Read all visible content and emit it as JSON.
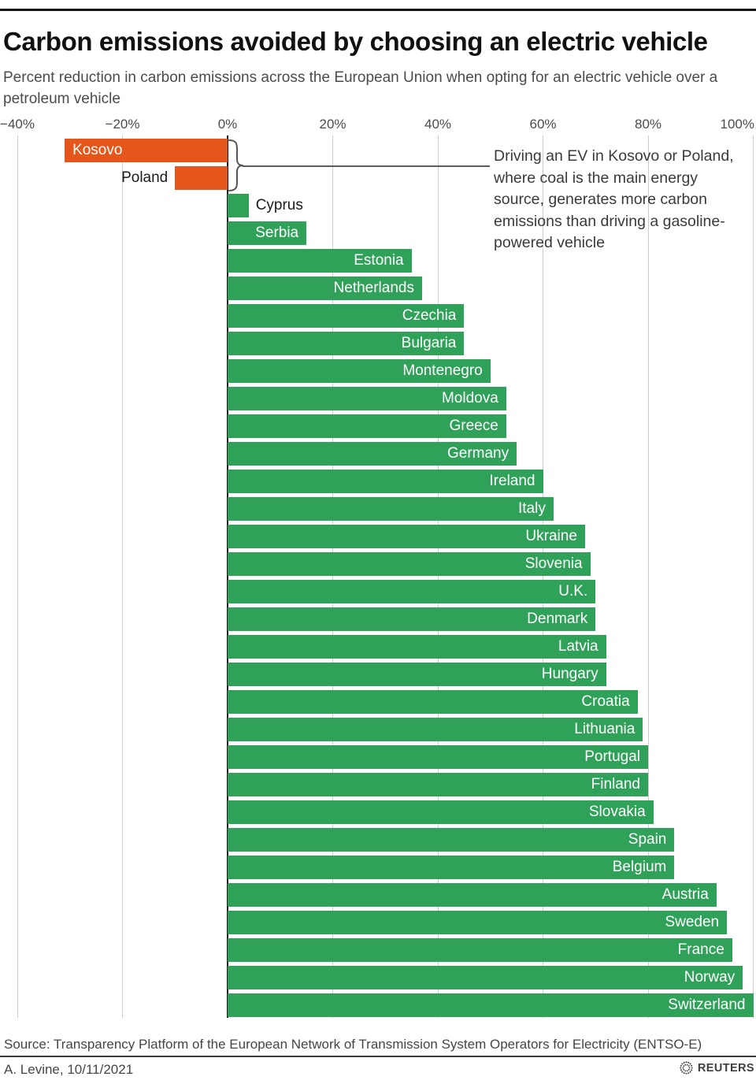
{
  "header": {
    "title": "Carbon emissions avoided by choosing an electric vehicle",
    "subtitle": "Percent reduction in carbon emissions across the European Union when opting for an electric vehicle over a petroleum vehicle"
  },
  "chart_data": {
    "type": "bar",
    "orientation": "horizontal",
    "unit": "percent",
    "xlim": [
      -40,
      100
    ],
    "tick_values": [
      -40,
      -20,
      0,
      20,
      40,
      60,
      80,
      100
    ],
    "tick_labels": [
      "−40%",
      "−20%",
      "0%",
      "20%",
      "40%",
      "60%",
      "80%",
      "100%"
    ],
    "grid": "vertical, light gray, dark zero line",
    "categories": [
      "Kosovo",
      "Poland",
      "Cyprus",
      "Serbia",
      "Estonia",
      "Netherlands",
      "Czechia",
      "Bulgaria",
      "Montenegro",
      "Moldova",
      "Greece",
      "Germany",
      "Ireland",
      "Italy",
      "Ukraine",
      "Slovenia",
      "U.K.",
      "Denmark",
      "Latvia",
      "Hungary",
      "Croatia",
      "Lithuania",
      "Portugal",
      "Finland",
      "Slovakia",
      "Spain",
      "Belgium",
      "Austria",
      "Sweden",
      "France",
      "Norway",
      "Switzerland"
    ],
    "values": [
      -31,
      -10,
      4,
      15,
      35,
      37,
      45,
      45,
      50,
      53,
      53,
      55,
      60,
      62,
      68,
      69,
      70,
      70,
      72,
      72,
      78,
      79,
      80,
      80,
      81,
      85,
      85,
      93,
      95,
      96,
      98,
      100
    ],
    "colors": {
      "positive": "#2FA158",
      "negative": "#E4561B"
    },
    "annotation": "Driving an EV in Kosovo or Poland, where coal is the main energy source, generates more carbon emissions than driving a gasoline-powered vehicle"
  },
  "footer": {
    "source": "Source: Transparency Platform of the European Network of Transmission System Operators for Electricity (ENTSO-E)",
    "byline": "A. Levine, 10/11/2021",
    "brand": "REUTERS",
    "logo_icon": "reuters-sunburst-icon"
  }
}
